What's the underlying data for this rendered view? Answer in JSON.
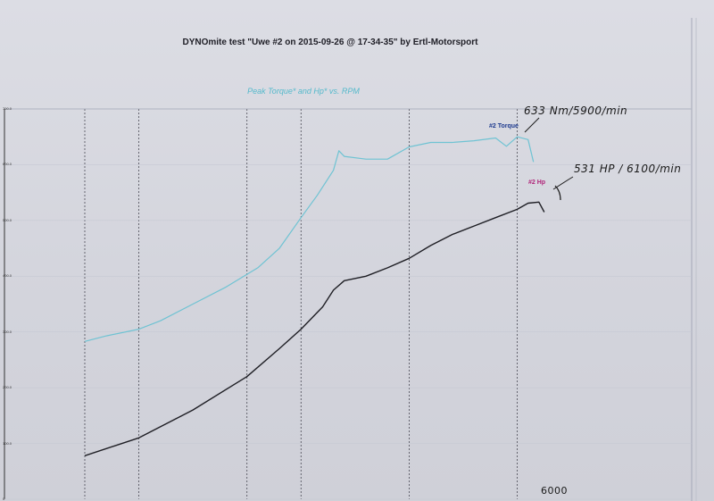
{
  "page": {
    "title": "DYNOmite test \"Uwe #2 on 2015-09-26 @ 17-34-35\" by Ertl-Motorsport"
  },
  "chart_data": {
    "type": "line",
    "title": "Peak Torque* and Hp* vs. RPM",
    "xlabel": "",
    "ylabel": "",
    "x_unit": "RPM",
    "grid": true,
    "legend_placement": "inline",
    "y_tick_labels": [
      "700.0",
      "600.0",
      "500.0",
      "400.0",
      "300.0",
      "200.0",
      "100.0",
      "0"
    ],
    "ylim": [
      0,
      700
    ],
    "xlim": [
      2000,
      6400
    ],
    "x_gridlines": [
      2000,
      2500,
      3500,
      4000,
      5000,
      6000
    ],
    "series": [
      {
        "name": "#2 Torque",
        "color": "#6fc3d3",
        "x": [
          2000,
          2200,
          2500,
          2700,
          3000,
          3300,
          3600,
          3800,
          4000,
          4150,
          4300,
          4350,
          4400,
          4600,
          4800,
          5000,
          5200,
          5400,
          5600,
          5800,
          5900,
          6000,
          6100,
          6150
        ],
        "y": [
          283,
          293,
          305,
          320,
          350,
          380,
          415,
          450,
          505,
          545,
          590,
          625,
          615,
          610,
          610,
          632,
          640,
          640,
          643,
          648,
          633,
          650,
          645,
          605
        ]
      },
      {
        "name": "#2 Hp",
        "color": "#1e1e24",
        "x": [
          2000,
          2500,
          3000,
          3500,
          3800,
          4000,
          4200,
          4300,
          4400,
          4600,
          4800,
          5000,
          5200,
          5400,
          5600,
          5800,
          6000,
          6100,
          6200,
          6250
        ],
        "y": [
          78,
          110,
          160,
          220,
          270,
          305,
          345,
          375,
          392,
          400,
          415,
          432,
          455,
          475,
          490,
          505,
          520,
          531,
          533,
          515
        ]
      }
    ],
    "annotations": [
      {
        "label": "633 Nm/5900/min",
        "series": "#2 Torque"
      },
      {
        "label": "531 HP / 6100/min",
        "series": "#2 Hp"
      },
      {
        "label": "6000",
        "target": "x-gridline-6000"
      }
    ]
  }
}
